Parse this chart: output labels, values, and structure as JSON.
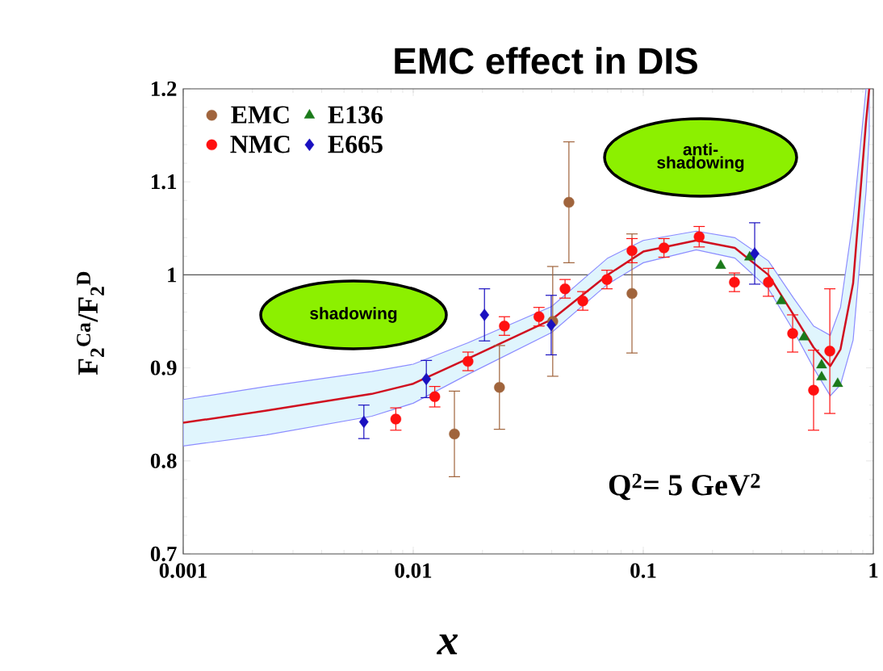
{
  "chart_data": {
    "type": "scatter",
    "title": "EMC effect in DIS",
    "xlabel": "x",
    "ylabel": "F$_{2}$$^{Ca}$/F$_{2}$$^{D}$",
    "log": "x",
    "xlim": [
      0.001,
      1
    ],
    "xticks": [
      0.001,
      0.01,
      0.1,
      1
    ],
    "ylim": [
      0.7,
      1.2
    ],
    "yticks": [
      0.7,
      0.8,
      0.9,
      1,
      1.1,
      1.2
    ],
    "legend": "top left",
    "ref_lines": [
      {
        "axis": "y",
        "value": 1,
        "color": "#555555"
      }
    ],
    "annotations": [
      "anti-shadowing",
      "shadowing",
      "Q$^{2}$= 5 GeV$^{2}$"
    ],
    "series": [
      {
        "name": "EMC",
        "color": "#a0643c",
        "marker": "circle",
        "x": [
          0.0151,
          0.0237,
          0.0404,
          0.0475,
          0.0893
        ],
        "values": [
          0.829,
          0.879,
          0.95,
          1.078,
          0.98
        ],
        "errors": [
          0.046,
          0.045,
          0.059,
          0.065,
          0.064
        ]
      },
      {
        "name": "E136",
        "color": "#1a7a1a",
        "marker": "triangle",
        "x": [
          0.217,
          0.29,
          0.398,
          0.5,
          0.596,
          0.596,
          0.7
        ],
        "values": [
          1.01,
          1.019,
          0.972,
          0.933,
          0.903,
          0.89,
          0.883
        ]
      },
      {
        "name": "NMC",
        "color": "#ff1010",
        "marker": "circle",
        "x": [
          0.0084,
          0.0124,
          0.0173,
          0.0249,
          0.0352,
          0.0457,
          0.0546,
          0.0695,
          0.0893,
          0.123,
          0.175,
          0.249,
          0.35,
          0.446,
          0.55,
          0.647
        ],
        "values": [
          0.845,
          0.869,
          0.907,
          0.945,
          0.955,
          0.985,
          0.972,
          0.995,
          1.026,
          1.029,
          1.041,
          0.992,
          0.992,
          0.937,
          0.876,
          0.918
        ],
        "errors": [
          0.012,
          0.011,
          0.01,
          0.01,
          0.01,
          0.01,
          0.01,
          0.01,
          0.013,
          0.01,
          0.011,
          0.01,
          0.015,
          0.02,
          0.043,
          0.067
        ]
      },
      {
        "name": "E665",
        "color": "#1a10c0",
        "marker": "diamond",
        "x": [
          0.0061,
          0.0114,
          0.0204,
          0.0398,
          0.305
        ],
        "values": [
          0.842,
          0.888,
          0.957,
          0.946,
          1.023
        ],
        "errors": [
          0.018,
          0.02,
          0.028,
          0.032,
          0.033
        ]
      },
      {
        "type": "line",
        "color": "#d01020",
        "marker": "none",
        "x": [
          0.001,
          0.0023,
          0.0066,
          0.01,
          0.0173,
          0.04,
          0.07,
          0.1,
          0.17,
          0.25,
          0.35,
          0.45,
          0.55,
          0.65,
          0.72,
          0.817,
          0.93,
          0.96
        ],
        "values": [
          0.841,
          0.854,
          0.872,
          0.883,
          0.91,
          0.952,
          1.0,
          1.025,
          1.037,
          1.029,
          1.0,
          0.957,
          0.922,
          0.902,
          0.92,
          0.991,
          1.165,
          1.2
        ],
        "lower": [
          0.816,
          0.828,
          0.848,
          0.862,
          0.893,
          0.938,
          0.99,
          1.013,
          1.027,
          1.018,
          0.985,
          0.94,
          0.9,
          0.87,
          0.882,
          0.93,
          1.09,
          1.15
        ],
        "upper": [
          0.866,
          0.88,
          0.896,
          0.904,
          0.927,
          0.966,
          1.018,
          1.037,
          1.047,
          1.04,
          1.015,
          0.975,
          0.945,
          0.935,
          0.965,
          1.06,
          1.2,
          1.2
        ]
      }
    ]
  }
}
